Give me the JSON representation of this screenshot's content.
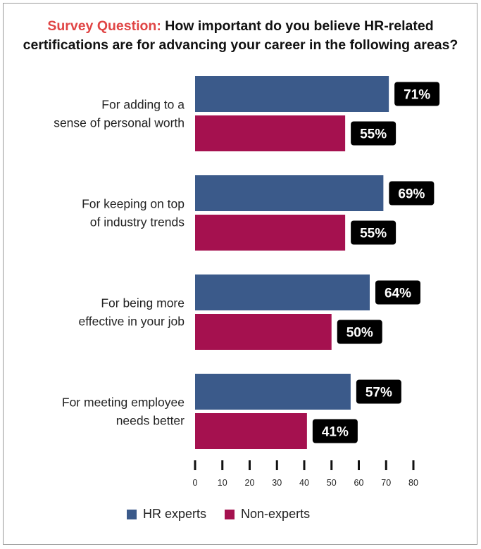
{
  "title": {
    "lead": "Survey Question:",
    "line1": "How important do you believe HR-related",
    "line2": "certifications are for advancing your career in the following areas?"
  },
  "colors": {
    "hr_experts": "#3b5a8a",
    "non_experts": "#a5114f",
    "label_bg": "#000000",
    "label_text": "#ffffff"
  },
  "chart_data": {
    "type": "bar",
    "orientation": "horizontal",
    "categories": [
      [
        "For adding to a",
        "sense of personal worth"
      ],
      [
        "For keeping on top",
        "of industry trends"
      ],
      [
        "For being more",
        "effective in your job"
      ],
      [
        "For meeting employee",
        "needs better"
      ]
    ],
    "series": [
      {
        "name": "HR experts",
        "values": [
          71,
          69,
          64,
          57
        ]
      },
      {
        "name": "Non-experts",
        "values": [
          55,
          55,
          50,
          41
        ]
      }
    ],
    "value_suffix": "%",
    "xlim": [
      0,
      80
    ],
    "xticks": [
      0,
      10,
      20,
      30,
      40,
      50,
      60,
      70,
      80
    ],
    "grid": false,
    "legend_position": "bottom"
  }
}
